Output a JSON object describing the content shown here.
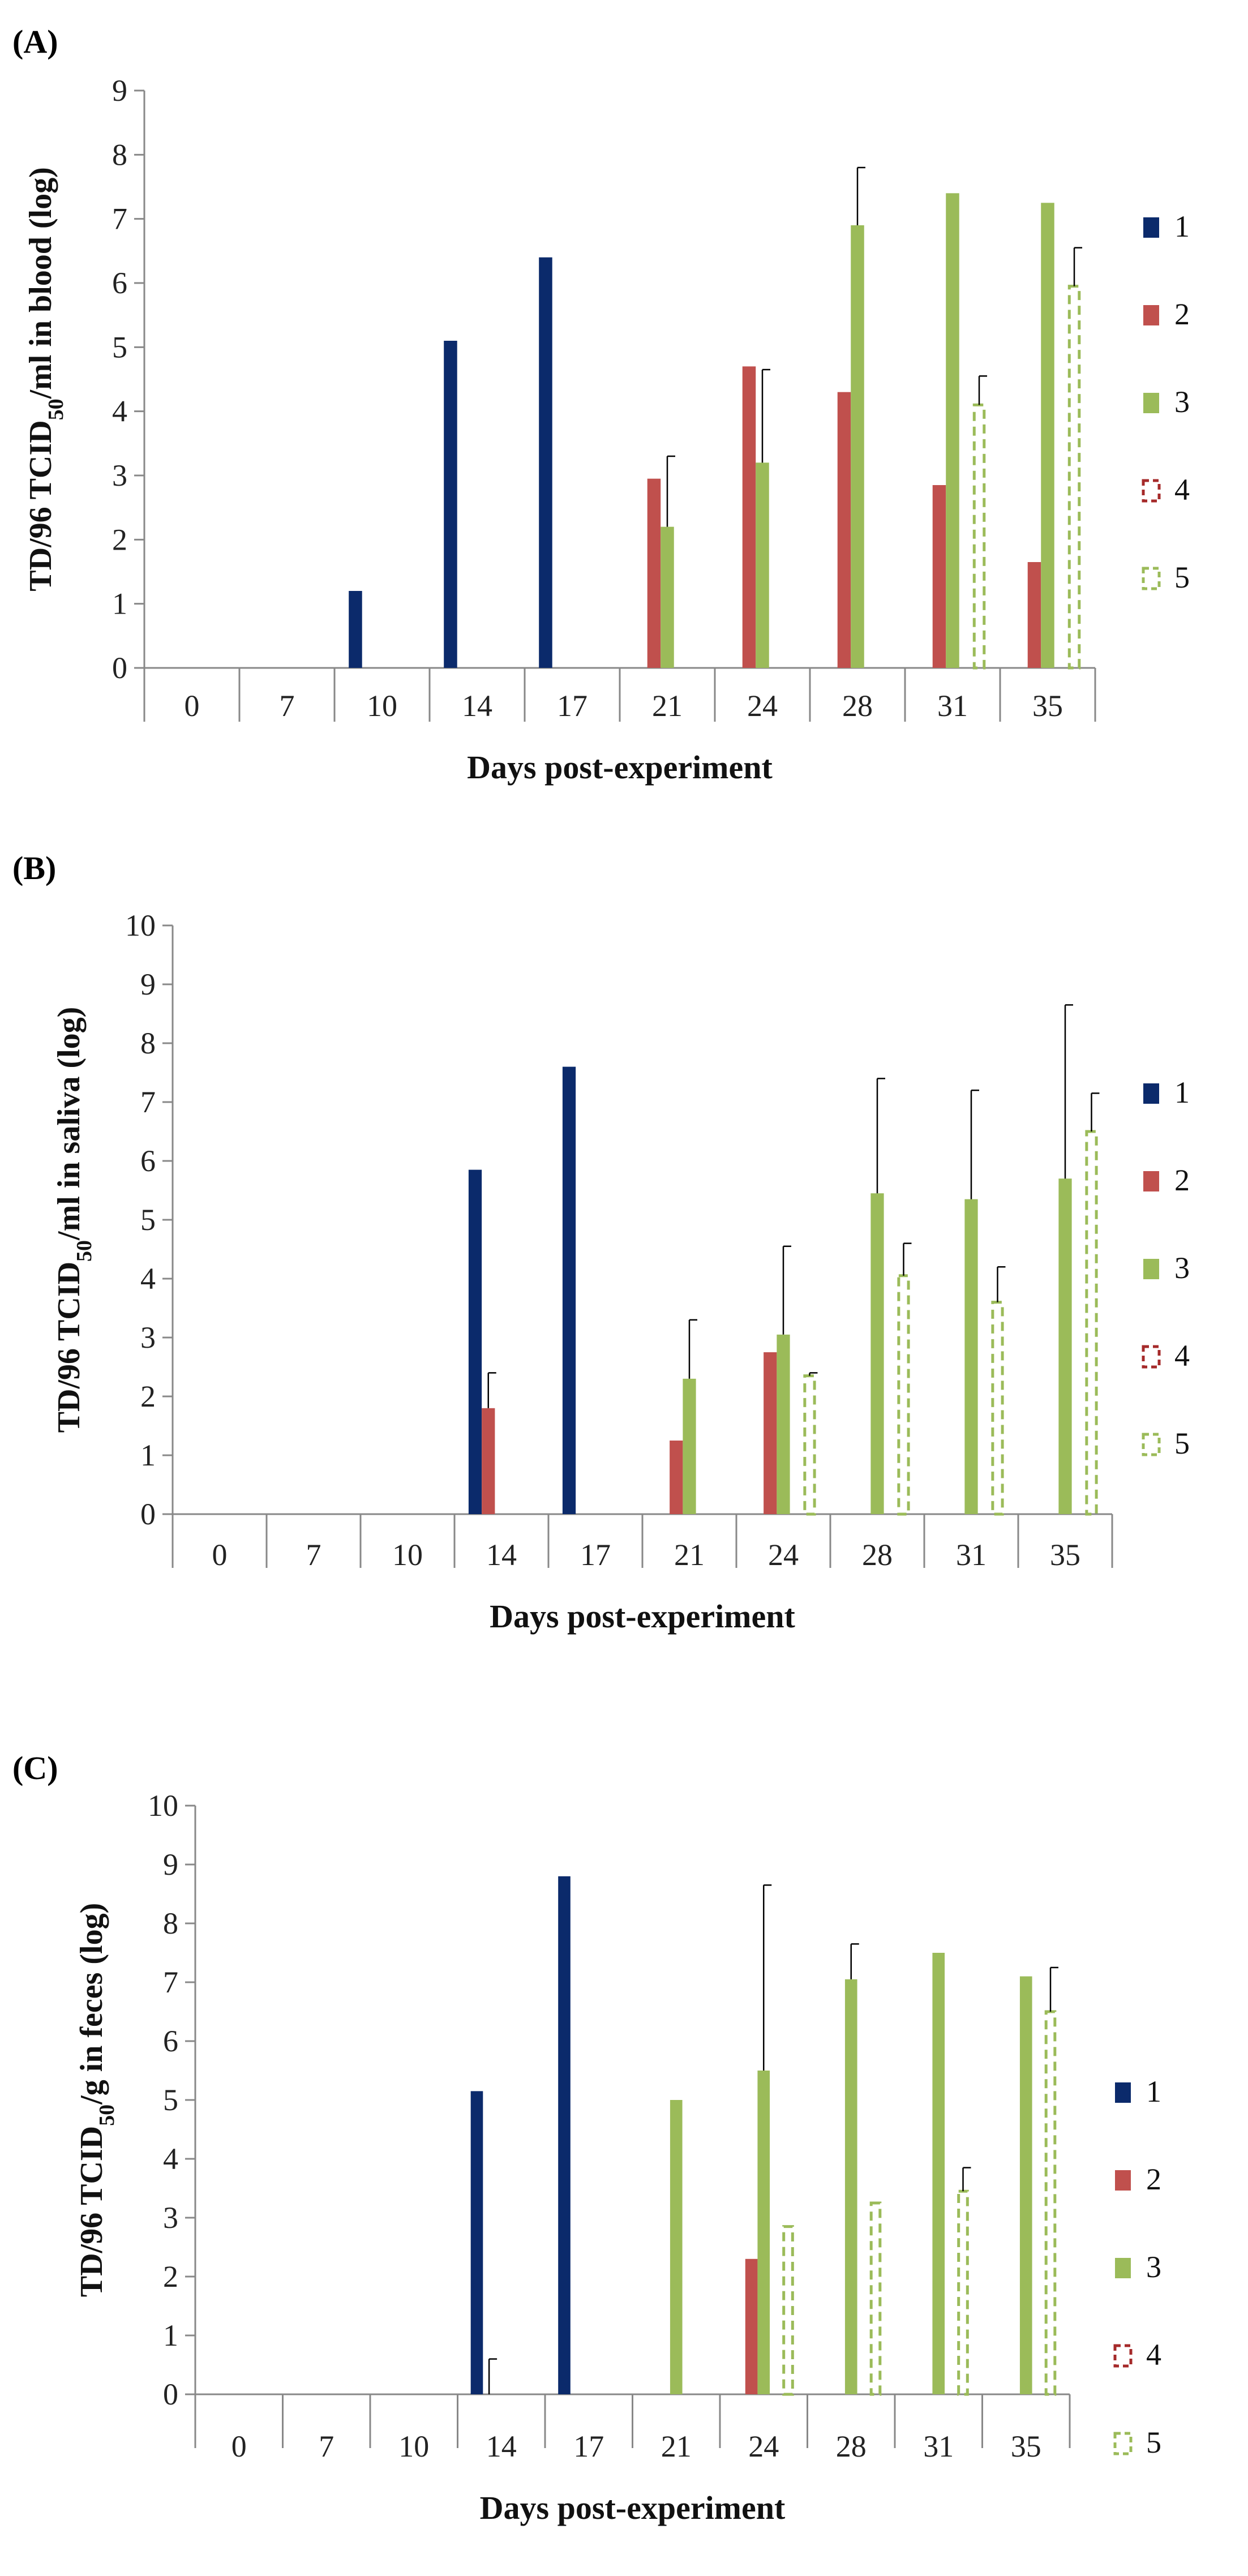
{
  "colors": {
    "1": "#0b2a6b",
    "2": "#c0504d",
    "3": "#9bbb59",
    "4": "#a52a2a",
    "5": "#9bbb59"
  },
  "chart_data": [
    {
      "type": "bar",
      "panel_label": "(A)",
      "categories": [
        "0",
        "7",
        "10",
        "14",
        "17",
        "21",
        "24",
        "28",
        "31",
        "35"
      ],
      "ylabel_pre": "TD/96 TCID",
      "ylabel_sub": "50",
      "ylabel_post": "/ml in blood (log)",
      "xlabel": "Days post-experiment",
      "ylim": [
        0,
        9
      ],
      "yticks": [
        "0",
        "1",
        "2",
        "3",
        "4",
        "5",
        "6",
        "7",
        "8",
        "9"
      ],
      "legend": [
        "1",
        "2",
        "3",
        "4",
        "5"
      ],
      "series": [
        {
          "name": "1",
          "values": [
            0,
            0,
            1.2,
            5.1,
            6.4,
            0,
            0,
            0,
            0,
            0
          ],
          "errors": [
            0,
            0,
            0,
            0,
            0,
            0,
            0,
            0,
            0,
            0
          ]
        },
        {
          "name": "2",
          "values": [
            0,
            0,
            0,
            0,
            0,
            2.95,
            4.7,
            4.3,
            2.85,
            1.65
          ],
          "errors": [
            0,
            0,
            0,
            0,
            0,
            0,
            0,
            0,
            0,
            0
          ]
        },
        {
          "name": "3",
          "values": [
            0,
            0,
            0,
            0,
            0,
            2.2,
            3.2,
            6.9,
            7.4,
            7.25
          ],
          "errors": [
            0,
            0,
            0,
            0,
            0,
            1.1,
            1.45,
            0.9,
            0,
            0
          ]
        },
        {
          "name": "4",
          "values": [
            0,
            0,
            0,
            0,
            0,
            0,
            0,
            0,
            0,
            0
          ],
          "errors": [
            0,
            0,
            0,
            0,
            0,
            0,
            0,
            0,
            0,
            0
          ]
        },
        {
          "name": "5",
          "values": [
            0,
            0,
            0,
            0,
            0,
            0,
            0,
            0,
            4.1,
            5.95
          ],
          "errors": [
            0,
            0,
            0,
            0,
            0,
            0,
            0,
            0,
            0.45,
            0.6
          ]
        }
      ]
    },
    {
      "type": "bar",
      "panel_label": "(B)",
      "categories": [
        "0",
        "7",
        "10",
        "14",
        "17",
        "21",
        "24",
        "28",
        "31",
        "35"
      ],
      "ylabel_pre": "TD/96 TCID",
      "ylabel_sub": "50",
      "ylabel_post": "/ml in saliva (log)",
      "xlabel": "Days post-experiment",
      "ylim": [
        0,
        10
      ],
      "yticks": [
        "0",
        "1",
        "2",
        "3",
        "4",
        "5",
        "6",
        "7",
        "8",
        "9",
        "10"
      ],
      "legend": [
        "1",
        "2",
        "3",
        "4",
        "5"
      ],
      "series": [
        {
          "name": "1",
          "values": [
            0,
            0,
            0,
            5.85,
            7.6,
            0,
            0,
            0,
            0,
            0
          ],
          "errors": [
            0,
            0,
            0,
            0,
            0,
            0,
            0,
            0,
            0,
            0
          ]
        },
        {
          "name": "2",
          "values": [
            0,
            0,
            0,
            1.8,
            0,
            1.25,
            2.75,
            0,
            0,
            0
          ],
          "errors": [
            0,
            0,
            0,
            0.6,
            0,
            0,
            0,
            0,
            0,
            0
          ]
        },
        {
          "name": "3",
          "values": [
            0,
            0,
            0,
            0,
            0,
            2.3,
            3.05,
            5.45,
            5.35,
            5.7
          ],
          "errors": [
            0,
            0,
            0,
            0,
            0,
            1.0,
            1.5,
            1.95,
            1.85,
            2.95
          ]
        },
        {
          "name": "4",
          "values": [
            0,
            0,
            0,
            0,
            0,
            0,
            0,
            0,
            0,
            0
          ],
          "errors": [
            0,
            0,
            0,
            0,
            0,
            0,
            0,
            0,
            0,
            0
          ]
        },
        {
          "name": "5",
          "values": [
            0,
            0,
            0,
            0,
            0,
            0,
            2.35,
            4.05,
            3.6,
            6.5
          ],
          "errors": [
            0,
            0,
            0,
            0,
            0,
            0,
            0.05,
            0.55,
            0.6,
            0.65
          ]
        }
      ]
    },
    {
      "type": "bar",
      "panel_label": "(C)",
      "categories": [
        "0",
        "7",
        "10",
        "14",
        "17",
        "21",
        "24",
        "28",
        "31",
        "35"
      ],
      "ylabel_pre": "TD/96 TCID",
      "ylabel_sub": "50",
      "ylabel_post": "/g in feces (log)",
      "xlabel": "Days post-experiment",
      "ylim": [
        0,
        10
      ],
      "yticks": [
        "0",
        "1",
        "2",
        "3",
        "4",
        "5",
        "6",
        "7",
        "8",
        "9",
        "10"
      ],
      "legend": [
        "1",
        "2",
        "3",
        "4",
        "5"
      ],
      "series": [
        {
          "name": "1",
          "values": [
            0,
            0,
            0,
            5.15,
            8.8,
            0,
            0,
            0,
            0,
            0
          ],
          "errors": [
            0,
            0,
            0,
            0,
            0,
            0,
            0,
            0,
            0,
            0
          ]
        },
        {
          "name": "2",
          "values": [
            0,
            0,
            0,
            0,
            0,
            0,
            2.3,
            0,
            0,
            0
          ],
          "errors": [
            0,
            0,
            0,
            0.6,
            0,
            0,
            0,
            0,
            0,
            0
          ]
        },
        {
          "name": "3",
          "values": [
            0,
            0,
            0,
            0,
            0,
            5.0,
            5.5,
            7.05,
            7.5,
            7.1
          ],
          "errors": [
            0,
            0,
            0,
            0,
            0,
            0,
            3.15,
            0.6,
            0,
            0
          ]
        },
        {
          "name": "4",
          "values": [
            0,
            0,
            0,
            0,
            0,
            0,
            0,
            0,
            0,
            0
          ],
          "errors": [
            0,
            0,
            0,
            0,
            0,
            0,
            0,
            0,
            0,
            0
          ]
        },
        {
          "name": "5",
          "values": [
            0,
            0,
            0,
            0,
            0,
            0,
            2.85,
            3.25,
            3.45,
            6.5
          ],
          "errors": [
            0,
            0,
            0,
            0,
            0,
            0,
            0,
            0,
            0.4,
            0.75
          ]
        }
      ]
    }
  ]
}
